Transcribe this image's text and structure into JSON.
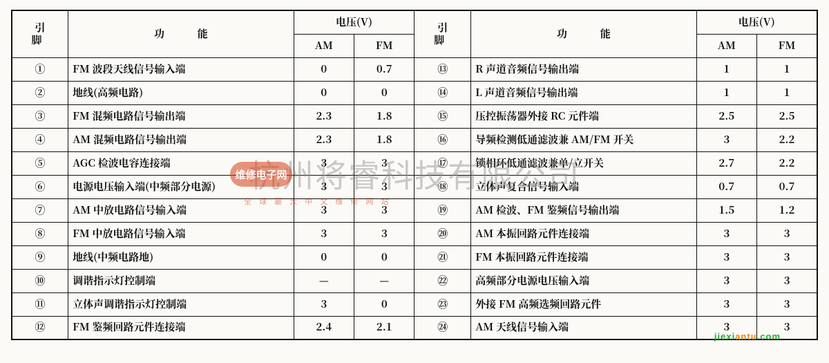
{
  "header": {
    "pin": "引 脚",
    "func": "功 能",
    "volt": "电压(V)",
    "am": "AM",
    "fm": "FM"
  },
  "watermark_text": "杭州将睿科技有限公司",
  "wm_badge_title": "维修电子网",
  "wm_sub": "全 球 最 大 中 文 维 修 网 站",
  "corner_site": {
    "left": "jiexi",
    "right": "antu",
    "tail": ".com"
  },
  "left": [
    {
      "pin": "①",
      "func": "FM 波段天线信号输入端",
      "am": "0",
      "fm": "0.7"
    },
    {
      "pin": "②",
      "func": "地线(高频电路)",
      "am": "0",
      "fm": "0"
    },
    {
      "pin": "③",
      "func": "FM 混频电路信号输出端",
      "am": "2.3",
      "fm": "1.8"
    },
    {
      "pin": "④",
      "func": "AM 混频电路信号输出端",
      "am": "2.3",
      "fm": "1.8"
    },
    {
      "pin": "⑤",
      "func": "AGC 检波电容连接端",
      "am": "3",
      "fm": "3"
    },
    {
      "pin": "⑥",
      "func": "电源电压输入端(中频部分电源)",
      "am": "3",
      "fm": "3"
    },
    {
      "pin": "⑦",
      "func": "AM 中放电路信号输入端",
      "am": "3",
      "fm": "3"
    },
    {
      "pin": "⑧",
      "func": "FM 中放电路信号输入端",
      "am": "3",
      "fm": "3"
    },
    {
      "pin": "⑨",
      "func": "地线(中频电路地)",
      "am": "0",
      "fm": "0"
    },
    {
      "pin": "⑩",
      "func": "调谐指示灯控制端",
      "am": "—",
      "fm": "—"
    },
    {
      "pin": "⑪",
      "func": "立体声调谐指示灯控制端",
      "am": "3",
      "fm": "0"
    },
    {
      "pin": "⑫",
      "func": "FM 鉴频回路元件连接端",
      "am": "2.4",
      "fm": "2.1"
    }
  ],
  "right": [
    {
      "pin": "⑬",
      "func": "R 声道音频信号输出端",
      "am": "1",
      "fm": "1"
    },
    {
      "pin": "⑭",
      "func": "L 声道音频信号输出端",
      "am": "1",
      "fm": "1"
    },
    {
      "pin": "⑮",
      "func": "压控振荡器外接 RC 元件端",
      "am": "2.5",
      "fm": "2.5"
    },
    {
      "pin": "⑯",
      "func": "导频检测低通滤波兼 AM/FM 开关",
      "am": "3",
      "fm": "2.2"
    },
    {
      "pin": "⑰",
      "func": "锁相环低通滤波兼单/立开关",
      "am": "2.7",
      "fm": "2.2"
    },
    {
      "pin": "⑱",
      "func": "立体声复合信号输入端",
      "am": "0.7",
      "fm": "0.7"
    },
    {
      "pin": "⑲",
      "func": "AM 检波、FM 鉴频信号输出端",
      "am": "1.5",
      "fm": "1.2"
    },
    {
      "pin": "⑳",
      "func": "AM 本振回路元件连接端",
      "am": "3",
      "fm": "3"
    },
    {
      "pin": "㉑",
      "func": "FM 本振回路元件连接端",
      "am": "3",
      "fm": "3"
    },
    {
      "pin": "㉒",
      "func": "高频部分电源电压输入端",
      "am": "3",
      "fm": "3"
    },
    {
      "pin": "㉓",
      "func": "外接 FM 高频选频回路元件",
      "am": "3",
      "fm": "3"
    },
    {
      "pin": "㉔",
      "func": "AM 天线信号输入端",
      "am": "3",
      "fm": "3"
    }
  ]
}
